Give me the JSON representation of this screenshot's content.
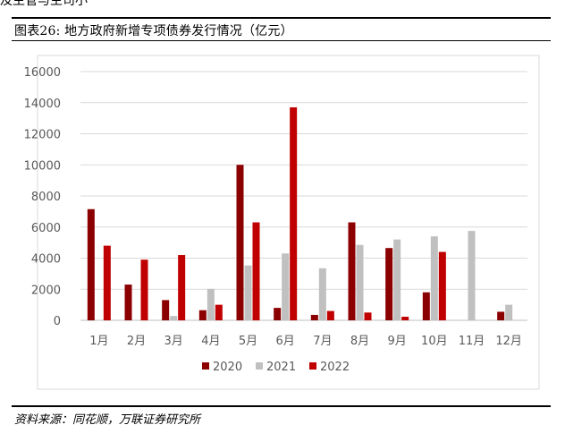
{
  "page": {
    "top_fragment": "及主管与主司小",
    "figure_title": "图表26:  地方政府新增专项债券发行情况（亿元）",
    "source": "资料来源：同花顺，万联证券研究所"
  },
  "chart_data": {
    "type": "bar",
    "title": "",
    "xlabel": "",
    "ylabel": "",
    "categories": [
      "1月",
      "2月",
      "3月",
      "4月",
      "5月",
      "6月",
      "7月",
      "8月",
      "9月",
      "10月",
      "11月",
      "12月"
    ],
    "series": [
      {
        "name": "2020",
        "color": "#8b0000",
        "values": [
          7150,
          2300,
          1300,
          650,
          10000,
          800,
          350,
          6300,
          4650,
          1800,
          null,
          550
        ]
      },
      {
        "name": "2021",
        "color": "#c0c0c0",
        "values": [
          null,
          null,
          280,
          2020,
          3530,
          4300,
          3350,
          4850,
          5200,
          5400,
          5750,
          1000
        ]
      },
      {
        "name": "2022",
        "color": "#c00000",
        "values": [
          4800,
          3900,
          4200,
          1000,
          6300,
          13700,
          600,
          500,
          230,
          4400,
          null,
          null
        ]
      }
    ],
    "ylim": [
      0,
      16000
    ],
    "yticks": [
      0,
      2000,
      4000,
      6000,
      8000,
      10000,
      12000,
      14000,
      16000
    ],
    "grid": true,
    "legend_position": "bottom-center"
  }
}
